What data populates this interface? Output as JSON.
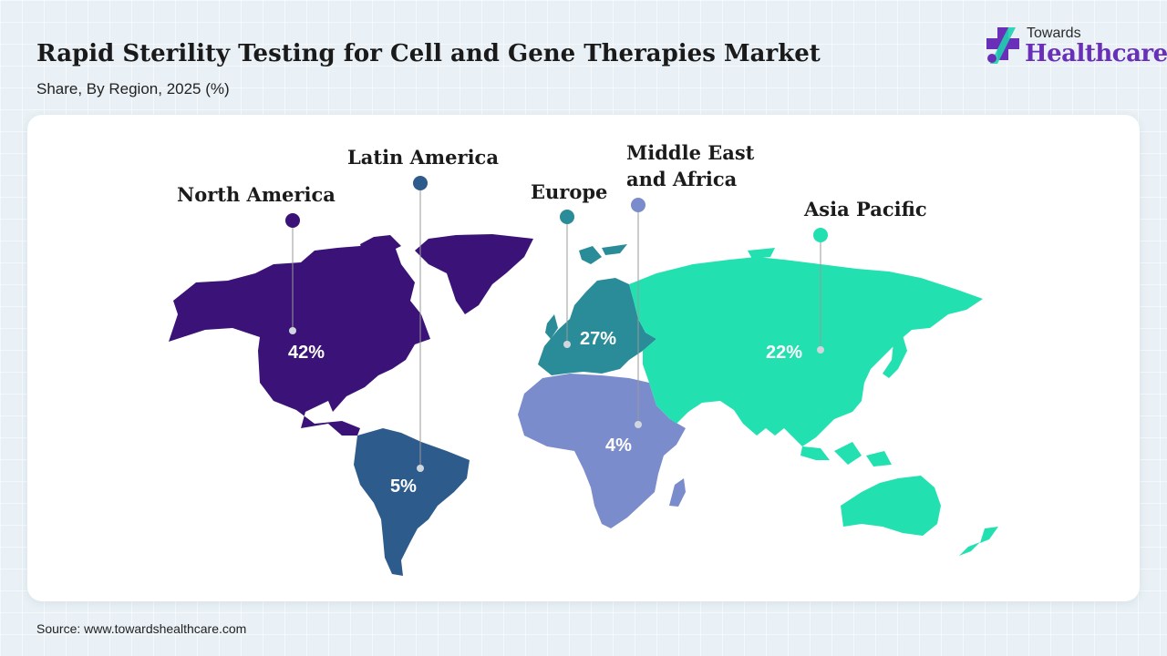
{
  "header": {
    "title": "Rapid Sterility Testing for Cell and Gene Therapies Market",
    "subtitle": "Share, By Region, 2025 (%)"
  },
  "logo": {
    "top": "Towards",
    "main": "Healthcare",
    "color": "#6a2fb8"
  },
  "regions": [
    {
      "name": "North America",
      "lines": [
        "North America"
      ],
      "share": 42,
      "label": "42%",
      "color": "#3b1378"
    },
    {
      "name": "Latin America",
      "lines": [
        "Latin America"
      ],
      "share": 5,
      "label": "5%",
      "color": "#2d5b8c"
    },
    {
      "name": "Europe",
      "lines": [
        "Europe"
      ],
      "share": 27,
      "label": "27%",
      "color": "#2a8c98"
    },
    {
      "name": "Middle East and Africa",
      "lines": [
        "Middle East",
        "and Africa"
      ],
      "share": 4,
      "label": "4%",
      "color": "#7b8ccc"
    },
    {
      "name": "Asia Pacific",
      "lines": [
        "Asia Pacific"
      ],
      "share": 22,
      "label": "22%",
      "color": "#22e0b0"
    }
  ],
  "source": "Source: www.towardshealthcare.com"
}
